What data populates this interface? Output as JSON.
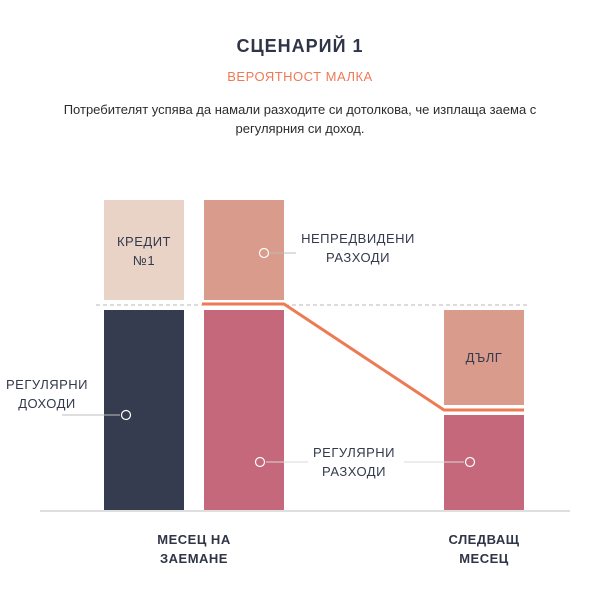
{
  "header": {
    "title": "СЦЕНАРИЙ 1",
    "subtitle": "ВЕРОЯТНОСТ МАЛКА",
    "description": "Потребителят успява да намали разходите си дотолкова, че изплаща заема с регулярния си доход."
  },
  "blocks": {
    "credit": "КРЕДИТ №1",
    "unexpected_expenses": "НЕПРЕДВИДЕНИ РАЗХОДИ",
    "regular_income": "РЕГУЛЯРНИ ДОХОДИ",
    "regular_expenses": "РЕГУЛЯРНИ РАЗХОДИ",
    "debt": "ДЪЛГ"
  },
  "axis": {
    "month_borrow": "МЕСЕЦ НА ЗАЕМАНЕ",
    "next_month": "СЛЕДВАЩ МЕСЕЦ"
  },
  "colors": {
    "credit": "#e9d3c7",
    "unexpected": "#d99b8c",
    "income": "#363c4f",
    "expenses": "#c5687c",
    "debt": "#d99b8c",
    "trend_line": "#ee7a55",
    "title": "#2f3547",
    "subtitle": "#ee7a55"
  }
}
